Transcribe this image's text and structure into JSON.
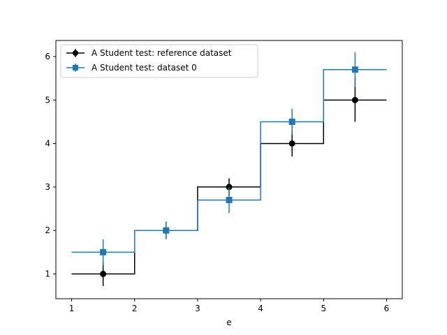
{
  "chart_data": {
    "type": "line",
    "title": "",
    "xlabel": "e",
    "ylabel": "",
    "xlim": [
      0.75,
      6.25
    ],
    "ylim": [
      0.43,
      6.37
    ],
    "x_ticks": [
      1,
      2,
      3,
      4,
      5,
      6
    ],
    "y_ticks": [
      1,
      2,
      3,
      4,
      5,
      6
    ],
    "x_tick_labels": [
      "1",
      "2",
      "3",
      "4",
      "5",
      "6"
    ],
    "y_tick_labels": [
      "1",
      "2",
      "3",
      "4",
      "5",
      "6"
    ],
    "grid": false,
    "legend_position": "top-left",
    "series": [
      {
        "name": "A Student test: reference dataset",
        "color": "#000000",
        "marker": "circle",
        "bin_edges": [
          1,
          2,
          3,
          4,
          5,
          6
        ],
        "x": [
          1.5,
          2.5,
          3.5,
          4.5,
          5.5
        ],
        "y": [
          1.0,
          2.0,
          3.0,
          4.0,
          5.0
        ],
        "yerr": [
          0.28,
          0.2,
          0.2,
          0.3,
          0.5
        ]
      },
      {
        "name": "A Student test: dataset 0",
        "color": "#1f77b4",
        "marker": "square",
        "bin_edges": [
          1,
          2,
          3,
          4,
          5,
          6
        ],
        "x": [
          1.5,
          2.5,
          3.5,
          4.5,
          5.5
        ],
        "y": [
          1.5,
          2.0,
          2.7,
          4.5,
          5.7
        ],
        "yerr": [
          0.3,
          0.2,
          0.3,
          0.3,
          0.4
        ]
      }
    ]
  }
}
